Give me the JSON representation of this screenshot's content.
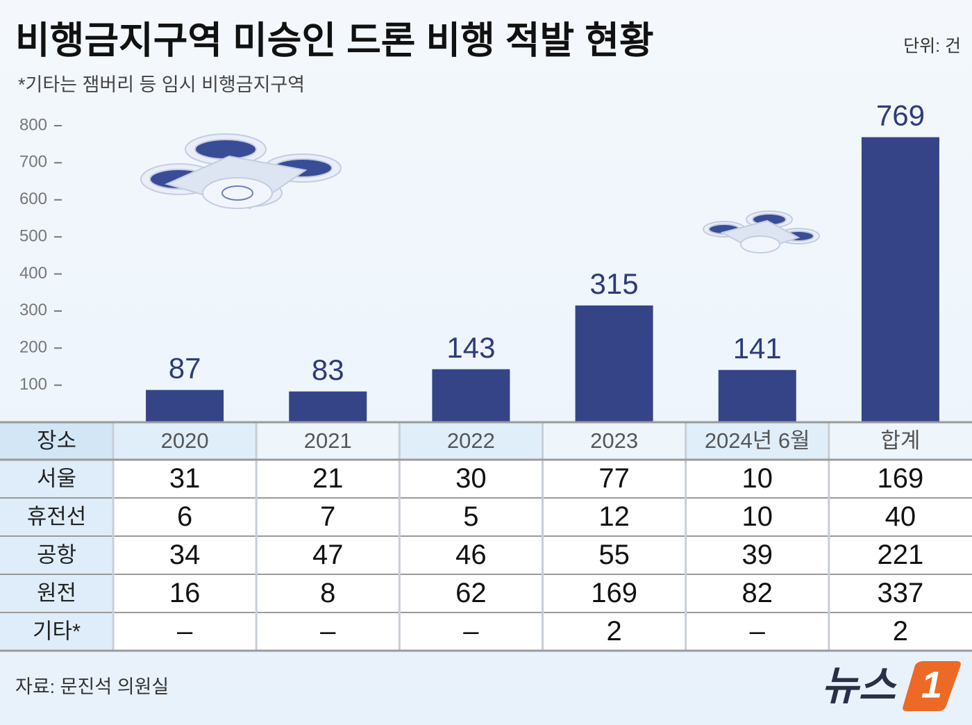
{
  "title": "비행금지구역 미승인 드론 비행 적발 현황",
  "unit": "단위: 건",
  "subtitle": "*기타는 잼버리 등 임시 비행금지구역",
  "chart_data": {
    "type": "bar",
    "categories": [
      "2020",
      "2021",
      "2022",
      "2023",
      "2024년 6월",
      "합계"
    ],
    "values": [
      87,
      83,
      143,
      315,
      141,
      769
    ],
    "color": "#344486",
    "ylim": [
      0,
      800
    ],
    "yticks": [
      100,
      200,
      300,
      400,
      500,
      600,
      700,
      800
    ]
  },
  "table": {
    "corner": "장소",
    "rows": [
      {
        "name": "서울",
        "values": [
          31,
          21,
          30,
          77,
          10,
          169
        ]
      },
      {
        "name": "휴전선",
        "values": [
          6,
          7,
          5,
          12,
          10,
          40
        ]
      },
      {
        "name": "공항",
        "values": [
          34,
          47,
          46,
          55,
          39,
          221
        ]
      },
      {
        "name": "원전",
        "values": [
          16,
          8,
          62,
          169,
          82,
          337
        ]
      },
      {
        "name": "기타*",
        "values": [
          "–",
          "–",
          "–",
          2,
          "–",
          2
        ]
      }
    ]
  },
  "source": "자료: 문진석 의원실",
  "logo": {
    "text": "뉴스",
    "mark": "1"
  }
}
